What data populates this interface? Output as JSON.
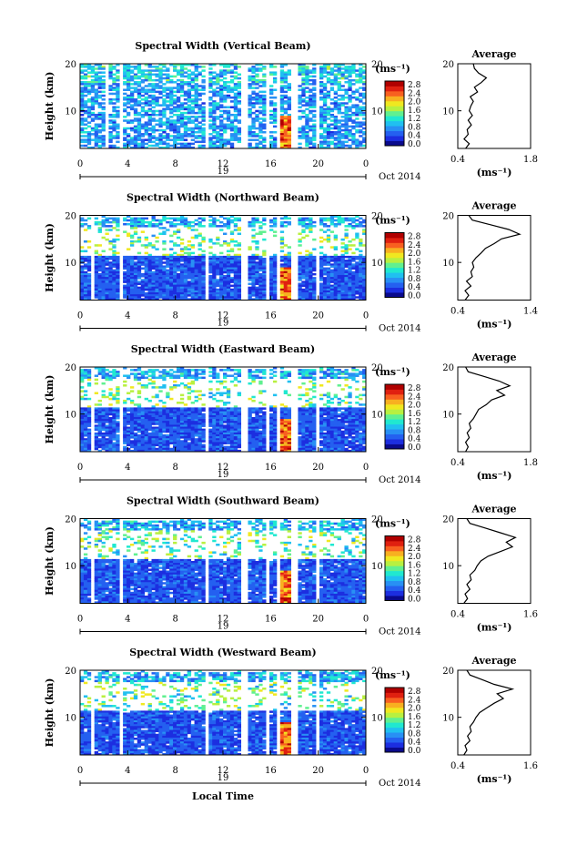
{
  "footer": {
    "xlabel": "Local Time"
  },
  "colorbar": {
    "unit_label": "(ms⁻¹)",
    "ticks": [
      "2.8",
      "2.4",
      "2.0",
      "1.6",
      "1.2",
      "0.8",
      "0.4",
      "0.0"
    ],
    "colors": [
      "#0a0a8c",
      "#1c2ee0",
      "#2460f0",
      "#2890f4",
      "#20c0f0",
      "#20e8d0",
      "#60f090",
      "#b8f040",
      "#f0e820",
      "#f8b020",
      "#f86020",
      "#e02010",
      "#b00000"
    ]
  },
  "chart_data": [
    {
      "type": "heatmap",
      "title": "Spectral Width (Vertical Beam)",
      "ylabel": "Height (km)",
      "ylim": [
        2,
        20
      ],
      "xlim": [
        0,
        24
      ],
      "xticks": [
        "0",
        "4",
        "8",
        "12",
        "16",
        "20",
        "0"
      ],
      "yticks": [
        "20",
        "10"
      ],
      "date_label": "19",
      "month_label": "Oct 2014",
      "colorbar_range": [
        0.0,
        3.0
      ],
      "data_gaps_hours": [
        [
          2.1,
          2.4
        ],
        [
          3.3,
          3.6
        ],
        [
          10.5,
          10.8
        ],
        [
          13.6,
          14.1
        ],
        [
          15.6,
          15.9
        ],
        [
          16.6,
          16.8
        ],
        [
          17.6,
          18.2
        ],
        [
          19.7,
          20.0
        ]
      ],
      "average_profile": {
        "title": "Average",
        "xlim": [
          0.4,
          1.8
        ],
        "xticks": [
          "0.4",
          "1.8"
        ],
        "yticks": [
          "20",
          "10"
        ],
        "xlabel": "(ms⁻¹)",
        "heights_km": [
          2,
          3,
          4,
          5,
          6,
          7,
          8,
          9,
          10,
          11,
          12,
          13,
          14,
          15,
          16,
          17,
          18,
          19,
          20
        ],
        "values": [
          0.55,
          0.62,
          0.52,
          0.6,
          0.58,
          0.66,
          0.6,
          0.68,
          0.62,
          0.65,
          0.7,
          0.64,
          0.78,
          0.72,
          0.85,
          0.95,
          0.8,
          0.72,
          0.7
        ]
      }
    },
    {
      "type": "heatmap",
      "title": "Spectral Width (Northward Beam)",
      "ylabel": "Height (km)",
      "ylim": [
        2,
        20
      ],
      "xlim": [
        0,
        24
      ],
      "xticks": [
        "0",
        "4",
        "8",
        "12",
        "16",
        "20",
        "0"
      ],
      "yticks": [
        "20",
        "10"
      ],
      "date_label": "19",
      "month_label": "Oct 2014",
      "colorbar_range": [
        0.0,
        3.0
      ],
      "data_gaps_hours": [
        [
          1.0,
          1.1
        ],
        [
          3.3,
          3.6
        ],
        [
          10.5,
          10.8
        ],
        [
          13.6,
          14.1
        ],
        [
          15.5,
          15.8
        ],
        [
          16.6,
          16.8
        ],
        [
          17.6,
          18.2
        ],
        [
          19.7,
          20.0
        ]
      ],
      "average_profile": {
        "title": "Average",
        "xlim": [
          0.4,
          1.4
        ],
        "xticks": [
          "0.4",
          "1.4"
        ],
        "yticks": [
          "20",
          "10"
        ],
        "xlabel": "(ms⁻¹)",
        "heights_km": [
          2,
          3,
          4,
          5,
          6,
          7,
          8,
          9,
          10,
          11,
          12,
          13,
          14,
          15,
          16,
          17,
          18,
          19,
          20
        ],
        "values": [
          0.5,
          0.55,
          0.5,
          0.58,
          0.52,
          0.6,
          0.58,
          0.62,
          0.6,
          0.65,
          0.72,
          0.78,
          0.9,
          1.0,
          1.25,
          1.1,
          0.85,
          0.6,
          0.55
        ]
      }
    },
    {
      "type": "heatmap",
      "title": "Spectral Width (Eastward Beam)",
      "ylabel": "Height (km)",
      "ylim": [
        2,
        20
      ],
      "xlim": [
        0,
        24
      ],
      "xticks": [
        "0",
        "4",
        "8",
        "12",
        "16",
        "20",
        "0"
      ],
      "yticks": [
        "20",
        "10"
      ],
      "date_label": "19",
      "month_label": "Oct 2014",
      "colorbar_range": [
        0.0,
        3.0
      ],
      "data_gaps_hours": [
        [
          1.0,
          1.1
        ],
        [
          3.3,
          3.6
        ],
        [
          10.5,
          10.8
        ],
        [
          13.6,
          14.1
        ],
        [
          15.5,
          15.8
        ],
        [
          16.6,
          16.8
        ],
        [
          17.6,
          18.2
        ],
        [
          19.7,
          20.0
        ]
      ],
      "average_profile": {
        "title": "Average",
        "xlim": [
          0.4,
          1.8
        ],
        "xticks": [
          "0.4",
          "1.8"
        ],
        "yticks": [
          "20",
          "10"
        ],
        "xlabel": "(ms⁻¹)",
        "heights_km": [
          2,
          3,
          4,
          5,
          6,
          7,
          8,
          9,
          10,
          11,
          12,
          13,
          14,
          15,
          16,
          17,
          18,
          19,
          20
        ],
        "values": [
          0.55,
          0.6,
          0.55,
          0.62,
          0.58,
          0.65,
          0.62,
          0.7,
          0.75,
          0.8,
          0.95,
          1.05,
          1.3,
          1.15,
          1.4,
          1.2,
          0.9,
          0.6,
          0.55
        ]
      }
    },
    {
      "type": "heatmap",
      "title": "Spectral Width (Southward Beam)",
      "ylabel": "Height (km)",
      "ylim": [
        2,
        20
      ],
      "xlim": [
        0,
        24
      ],
      "xticks": [
        "0",
        "4",
        "8",
        "12",
        "16",
        "20",
        "0"
      ],
      "yticks": [
        "20",
        "10"
      ],
      "date_label": "19",
      "month_label": "Oct 2014",
      "colorbar_range": [
        0.0,
        3.0
      ],
      "data_gaps_hours": [
        [
          1.0,
          1.1
        ],
        [
          3.3,
          3.6
        ],
        [
          10.5,
          10.8
        ],
        [
          13.6,
          14.1
        ],
        [
          15.5,
          15.8
        ],
        [
          16.6,
          16.8
        ],
        [
          17.6,
          18.2
        ],
        [
          19.7,
          20.0
        ]
      ],
      "average_profile": {
        "title": "Average",
        "xlim": [
          0.4,
          1.6
        ],
        "xticks": [
          "0.4",
          "1.6"
        ],
        "yticks": [
          "20",
          "10"
        ],
        "xlabel": "(ms⁻¹)",
        "heights_km": [
          2,
          3,
          4,
          5,
          6,
          7,
          8,
          9,
          10,
          11,
          12,
          13,
          14,
          15,
          16,
          17,
          18,
          19,
          20
        ],
        "values": [
          0.5,
          0.56,
          0.52,
          0.6,
          0.55,
          0.62,
          0.6,
          0.68,
          0.72,
          0.78,
          0.9,
          1.1,
          1.3,
          1.2,
          1.35,
          1.1,
          0.85,
          0.6,
          0.55
        ]
      }
    },
    {
      "type": "heatmap",
      "title": "Spectral Width (Westward Beam)",
      "ylabel": "Height (km)",
      "ylim": [
        2,
        20
      ],
      "xlim": [
        0,
        24
      ],
      "xticks": [
        "0",
        "4",
        "8",
        "12",
        "16",
        "20",
        "0"
      ],
      "yticks": [
        "20",
        "10"
      ],
      "date_label": "19",
      "month_label": "Oct 2014",
      "colorbar_range": [
        0.0,
        3.0
      ],
      "data_gaps_hours": [
        [
          1.0,
          1.1
        ],
        [
          3.3,
          3.6
        ],
        [
          10.5,
          10.8
        ],
        [
          13.6,
          14.1
        ],
        [
          15.5,
          15.8
        ],
        [
          16.6,
          16.8
        ],
        [
          17.6,
          18.2
        ],
        [
          19.7,
          20.0
        ]
      ],
      "average_profile": {
        "title": "Average",
        "xlim": [
          0.4,
          1.6
        ],
        "xticks": [
          "0.4",
          "1.6"
        ],
        "yticks": [
          "20",
          "10"
        ],
        "xlabel": "(ms⁻¹)",
        "heights_km": [
          2,
          3,
          4,
          5,
          6,
          7,
          8,
          9,
          10,
          11,
          12,
          13,
          14,
          15,
          16,
          17,
          18,
          19,
          20
        ],
        "values": [
          0.5,
          0.55,
          0.52,
          0.6,
          0.56,
          0.62,
          0.6,
          0.66,
          0.7,
          0.76,
          0.88,
          1.0,
          1.15,
          1.05,
          1.3,
          1.0,
          0.8,
          0.6,
          0.55
        ]
      }
    }
  ]
}
